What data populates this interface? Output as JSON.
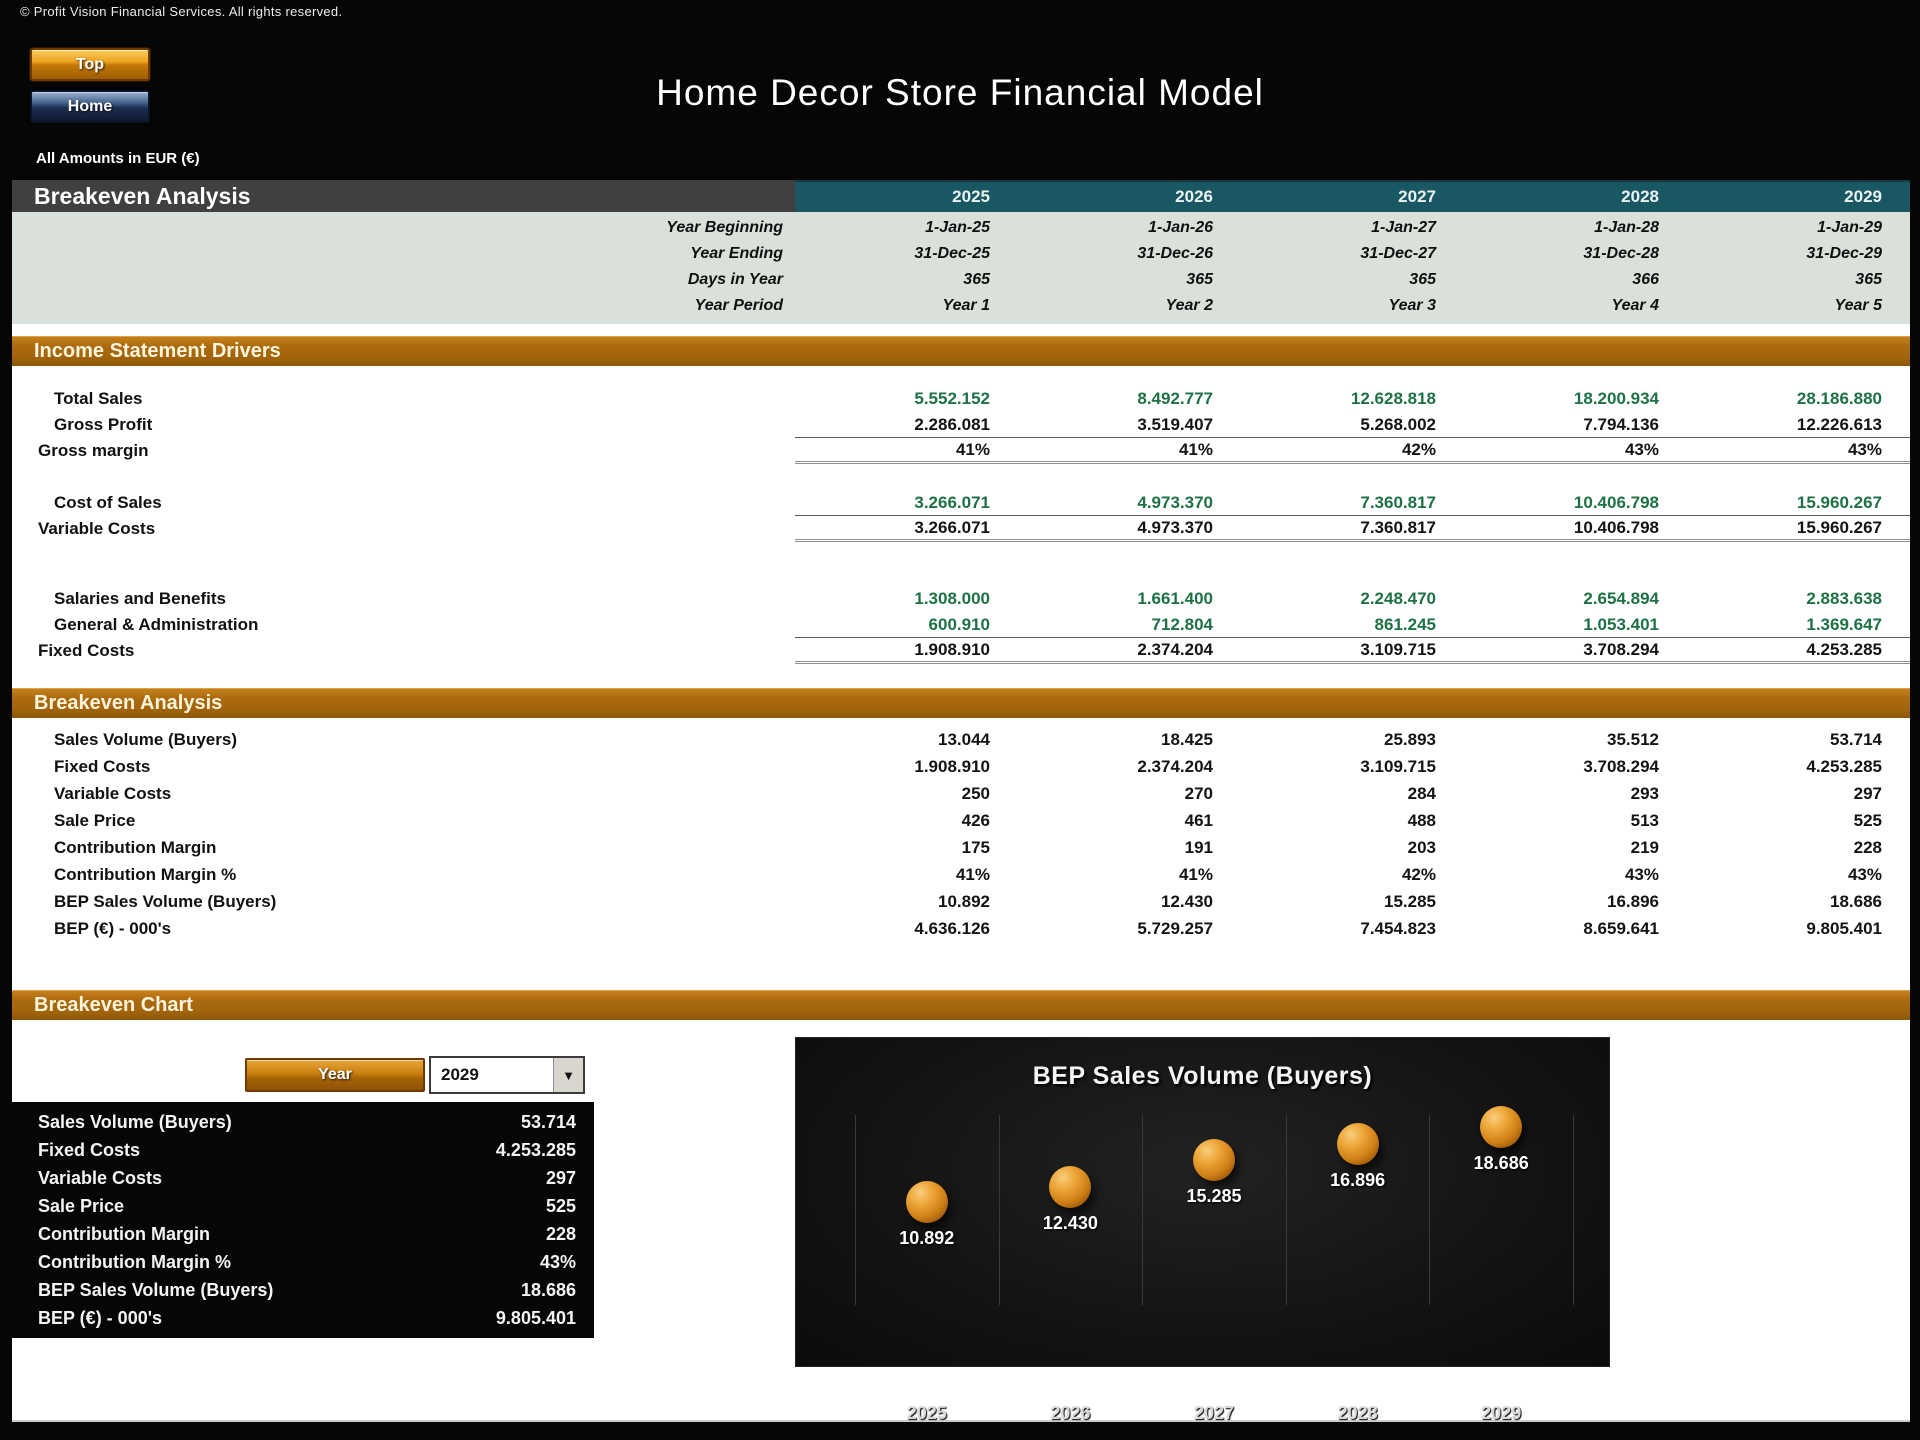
{
  "header": {
    "copyright": "© Profit Vision Financial Services. All rights reserved.",
    "top_button": "Top",
    "home_button": "Home",
    "title": "Home Decor Store Financial Model",
    "amounts_note": "All Amounts in  EUR (€)"
  },
  "colors": {
    "teal_header": "#195763",
    "orange_bar": "#ab6a0e",
    "green_value": "#1e7145",
    "meta_band": "#dae1db"
  },
  "table": {
    "title": "Breakeven Analysis",
    "years": [
      "2025",
      "2026",
      "2027",
      "2028",
      "2029"
    ],
    "meta_rows": [
      {
        "label": "Year Beginning",
        "values": [
          "1-Jan-25",
          "1-Jan-26",
          "1-Jan-27",
          "1-Jan-28",
          "1-Jan-29"
        ]
      },
      {
        "label": "Year Ending",
        "values": [
          "31-Dec-25",
          "31-Dec-26",
          "31-Dec-27",
          "31-Dec-28",
          "31-Dec-29"
        ]
      },
      {
        "label": "Days in Year",
        "values": [
          "365",
          "365",
          "365",
          "366",
          "365"
        ]
      },
      {
        "label": "Year Period",
        "values": [
          "Year 1",
          "Year 2",
          "Year 3",
          "Year 4",
          "Year 5"
        ]
      }
    ]
  },
  "income": {
    "header": "Income Statement Drivers",
    "rows": [
      {
        "label": "Total Sales",
        "cls": "indent green",
        "values": [
          "5.552.152",
          "8.492.777",
          "12.628.818",
          "18.200.934",
          "28.186.880"
        ]
      },
      {
        "label": "Gross Profit",
        "cls": "indent thin-line",
        "values": [
          "2.286.081",
          "3.519.407",
          "5.268.002",
          "7.794.136",
          "12.226.613"
        ]
      },
      {
        "label": "Gross margin",
        "cls": "thick-line gap-m",
        "values": [
          "41%",
          "41%",
          "42%",
          "43%",
          "43%"
        ]
      },
      {
        "label": "Cost of Sales",
        "cls": "indent green thin-line",
        "values": [
          "3.266.071",
          "4.973.370",
          "7.360.817",
          "10.406.798",
          "15.960.267"
        ]
      },
      {
        "label": "Variable Costs",
        "cls": "thick-line gap-l",
        "values": [
          "3.266.071",
          "4.973.370",
          "7.360.817",
          "10.406.798",
          "15.960.267"
        ]
      },
      {
        "label": "Salaries and Benefits",
        "cls": "indent green",
        "values": [
          "1.308.000",
          "1.661.400",
          "2.248.470",
          "2.654.894",
          "2.883.638"
        ]
      },
      {
        "label": "General & Administration",
        "cls": "indent green thin-line",
        "values": [
          "600.910",
          "712.804",
          "861.245",
          "1.053.401",
          "1.369.647"
        ]
      },
      {
        "label": "Fixed Costs",
        "cls": "thick-line",
        "values": [
          "1.908.910",
          "2.374.204",
          "3.109.715",
          "3.708.294",
          "4.253.285"
        ]
      }
    ]
  },
  "breakeven": {
    "header": "Breakeven Analysis",
    "rows": [
      {
        "label": "Sales Volume (Buyers)",
        "cls": "indent",
        "values": [
          "13.044",
          "18.425",
          "25.893",
          "35.512",
          "53.714"
        ]
      },
      {
        "label": "Fixed Costs",
        "cls": "indent",
        "values": [
          "1.908.910",
          "2.374.204",
          "3.109.715",
          "3.708.294",
          "4.253.285"
        ]
      },
      {
        "label": "Variable Costs",
        "cls": "indent",
        "values": [
          "250",
          "270",
          "284",
          "293",
          "297"
        ]
      },
      {
        "label": "Sale Price",
        "cls": "indent",
        "values": [
          "426",
          "461",
          "488",
          "513",
          "525"
        ]
      },
      {
        "label": "Contribution Margin",
        "cls": "indent",
        "values": [
          "175",
          "191",
          "203",
          "219",
          "228"
        ]
      },
      {
        "label": "Contribution Margin %",
        "cls": "indent",
        "values": [
          "41%",
          "41%",
          "42%",
          "43%",
          "43%"
        ]
      },
      {
        "label": "BEP Sales Volume (Buyers)",
        "cls": "indent",
        "values": [
          "10.892",
          "12.430",
          "15.285",
          "16.896",
          "18.686"
        ]
      },
      {
        "label": "BEP (€) - 000's",
        "cls": "indent",
        "values": [
          "4.636.126",
          "5.729.257",
          "7.454.823",
          "8.659.641",
          "9.805.401"
        ]
      }
    ]
  },
  "chart_section": {
    "header": "Breakeven Chart",
    "year_button": "Year",
    "year_selected": "2029",
    "summary_rows": [
      {
        "label": "Sales Volume (Buyers)",
        "value": "53.714"
      },
      {
        "label": "Fixed Costs",
        "value": "4.253.285"
      },
      {
        "label": "Variable Costs",
        "value": "297"
      },
      {
        "label": "Sale Price",
        "value": "525"
      },
      {
        "label": "Contribution Margin",
        "value": "228"
      },
      {
        "label": "Contribution Margin %",
        "value": "43%"
      },
      {
        "label": "BEP Sales Volume (Buyers)",
        "value": "18.686"
      },
      {
        "label": "BEP (€) - 000's",
        "value": "9.805.401"
      }
    ]
  },
  "chart_data": {
    "type": "scatter",
    "title": "BEP Sales Volume (Buyers)",
    "categories": [
      "2025",
      "2026",
      "2027",
      "2028",
      "2029"
    ],
    "values": [
      10892,
      12430,
      15285,
      16896,
      18686
    ],
    "value_labels": [
      "10.892",
      "12.430",
      "15.285",
      "16.896",
      "18.686"
    ],
    "ylim": [
      0,
      20000
    ],
    "grid": "vertical",
    "legend": "none",
    "background": "#111111"
  }
}
